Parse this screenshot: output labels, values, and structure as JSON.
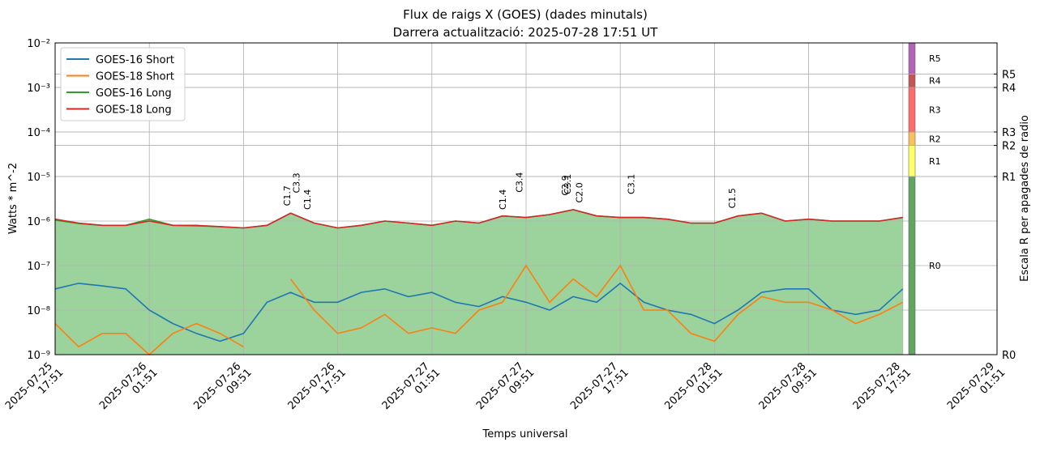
{
  "chart_data": {
    "type": "line",
    "title": "Flux de raigs X (GOES) (dades minutals)",
    "subtitle": "Darrera actualització: 2025-07-28 17:51 UT",
    "xlabel": "Temps universal",
    "ylabel": "Watts * m^-2",
    "y2label": "Escala R per apagades de radio",
    "log_y": true,
    "grid": true,
    "legend": "upper left",
    "fill_series": 2,
    "xlim": [
      "2025-07-25 17:51",
      "2025-07-29 01:51"
    ],
    "xticks": [
      "2025-07-25 17:51",
      "2025-07-26 01:51",
      "2025-07-26 09:51",
      "2025-07-26 17:51",
      "2025-07-27 01:51",
      "2025-07-27 09:51",
      "2025-07-27 17:51",
      "2025-07-28 01:51",
      "2025-07-28 09:51",
      "2025-07-28 17:51",
      "2025-07-29 01:51"
    ],
    "ylim": [
      1e-09,
      0.01
    ],
    "yticks": [
      {
        "value": 1e-09,
        "label": "10⁻⁹"
      },
      {
        "value": 1e-08,
        "label": "10⁻⁸"
      },
      {
        "value": 1e-07,
        "label": "10⁻⁷"
      },
      {
        "value": 1e-06,
        "label": "10⁻⁶"
      },
      {
        "value": 1e-05,
        "label": "10⁻⁵"
      },
      {
        "value": 0.0001,
        "label": "10⁻⁴"
      },
      {
        "value": 0.001,
        "label": "10⁻³"
      },
      {
        "value": 0.01,
        "label": "10⁻²"
      }
    ],
    "x": [
      "2025-07-25 17:51",
      "2025-07-25 19:51",
      "2025-07-25 21:51",
      "2025-07-25 23:51",
      "2025-07-26 01:51",
      "2025-07-26 03:51",
      "2025-07-26 05:51",
      "2025-07-26 07:51",
      "2025-07-26 09:51",
      "2025-07-26 11:51",
      "2025-07-26 13:51",
      "2025-07-26 15:51",
      "2025-07-26 17:51",
      "2025-07-26 19:51",
      "2025-07-26 21:51",
      "2025-07-26 23:51",
      "2025-07-27 01:51",
      "2025-07-27 03:51",
      "2025-07-27 05:51",
      "2025-07-27 07:51",
      "2025-07-27 09:51",
      "2025-07-27 11:51",
      "2025-07-27 13:51",
      "2025-07-27 15:51",
      "2025-07-27 17:51",
      "2025-07-27 19:51",
      "2025-07-27 21:51",
      "2025-07-27 23:51",
      "2025-07-28 01:51",
      "2025-07-28 03:51",
      "2025-07-28 05:51",
      "2025-07-28 07:51",
      "2025-07-28 09:51",
      "2025-07-28 11:51",
      "2025-07-28 13:51",
      "2025-07-28 15:51",
      "2025-07-28 17:51"
    ],
    "series": [
      {
        "name": "GOES-16 Short",
        "color": "#1f77b4",
        "values": [
          3e-08,
          4e-08,
          3.5e-08,
          3e-08,
          1e-08,
          5e-09,
          3e-09,
          2e-09,
          3e-09,
          1.5e-08,
          2.5e-08,
          1.5e-08,
          1.5e-08,
          2.5e-08,
          3e-08,
          2e-08,
          2.5e-08,
          1.5e-08,
          1.2e-08,
          2e-08,
          1.5e-08,
          1e-08,
          2e-08,
          1.5e-08,
          4e-08,
          1.5e-08,
          1e-08,
          8e-09,
          5e-09,
          1e-08,
          2.5e-08,
          3e-08,
          3e-08,
          1e-08,
          8e-09,
          1e-08,
          3e-08
        ]
      },
      {
        "name": "GOES-18 Short",
        "color": "#ff7f0e",
        "values": [
          5e-09,
          1.5e-09,
          3e-09,
          3e-09,
          1e-09,
          3e-09,
          5e-09,
          3e-09,
          1.5e-09,
          null,
          5e-08,
          1e-08,
          3e-09,
          4e-09,
          8e-09,
          3e-09,
          4e-09,
          3e-09,
          1e-08,
          1.5e-08,
          1e-07,
          1.5e-08,
          5e-08,
          2e-08,
          1e-07,
          1e-08,
          1e-08,
          3e-09,
          2e-09,
          8e-09,
          2e-08,
          1.5e-08,
          1.5e-08,
          1e-08,
          5e-09,
          8e-09,
          1.5e-08
        ]
      },
      {
        "name": "GOES-16 Long",
        "color": "#2ca02c",
        "values": [
          1.05e-06,
          8.8e-07,
          8e-07,
          8e-07,
          1.1e-06,
          8e-07,
          7.8e-07,
          7.5e-07,
          7e-07,
          8e-07,
          1.5e-06,
          9e-07,
          7e-07,
          8e-07,
          1e-06,
          9e-07,
          8e-07,
          1e-06,
          9e-07,
          1.3e-06,
          1.2e-06,
          1.4e-06,
          1.8e-06,
          1.3e-06,
          1.2e-06,
          1.2e-06,
          1.1e-06,
          9e-07,
          9e-07,
          1.3e-06,
          1.5e-06,
          1e-06,
          1.1e-06,
          1e-06,
          1e-06,
          1e-06,
          1.2e-06
        ]
      },
      {
        "name": "GOES-18 Long",
        "color": "#d62728",
        "values": [
          1.1e-06,
          9e-07,
          8e-07,
          8e-07,
          1e-06,
          8e-07,
          8e-07,
          7.5e-07,
          7e-07,
          8e-07,
          1.5e-06,
          9e-07,
          7e-07,
          8e-07,
          1e-06,
          9e-07,
          8e-07,
          1e-06,
          9e-07,
          1.3e-06,
          1.2e-06,
          1.4e-06,
          1.8e-06,
          1.3e-06,
          1.2e-06,
          1.2e-06,
          1.1e-06,
          9e-07,
          9e-07,
          1.3e-06,
          1.5e-06,
          1e-06,
          1.1e-06,
          1e-06,
          1e-06,
          1e-06,
          1.2e-06
        ]
      }
    ],
    "annotations": [
      {
        "text": "C1.7",
        "x": "2025-07-26 13:33",
        "y": 1.7e-06
      },
      {
        "text": "C3.3",
        "x": "2025-07-26 14:21",
        "y": 3.3e-06
      },
      {
        "text": "C1.4",
        "x": "2025-07-26 15:15",
        "y": 1.4e-06
      },
      {
        "text": "C1.4",
        "x": "2025-07-27 07:51",
        "y": 1.4e-06
      },
      {
        "text": "C3.4",
        "x": "2025-07-27 09:15",
        "y": 3.4e-06
      },
      {
        "text": "C2.9",
        "x": "2025-07-27 13:09",
        "y": 2.9e-06
      },
      {
        "text": "C3.1",
        "x": "2025-07-27 13:21",
        "y": 3.1e-06
      },
      {
        "text": "C2.0",
        "x": "2025-07-27 14:21",
        "y": 2e-06
      },
      {
        "text": "C3.1",
        "x": "2025-07-27 18:45",
        "y": 3.1e-06
      },
      {
        "text": "C1.5",
        "x": "2025-07-28 03:21",
        "y": 1.5e-06
      }
    ],
    "r_scale": [
      {
        "name": "R0",
        "value": 1e-09,
        "color": "#62a562"
      },
      {
        "name": "R1",
        "value": 1e-05,
        "color": "#ffff66"
      },
      {
        "name": "R2",
        "value": 5e-05,
        "color": "#f6c25e"
      },
      {
        "name": "R3",
        "value": 0.0001,
        "color": "#ff6a6a"
      },
      {
        "name": "R4",
        "value": 0.001,
        "color": "#c25555"
      },
      {
        "name": "R5",
        "value": 0.002,
        "color": "#b163b8"
      }
    ]
  }
}
